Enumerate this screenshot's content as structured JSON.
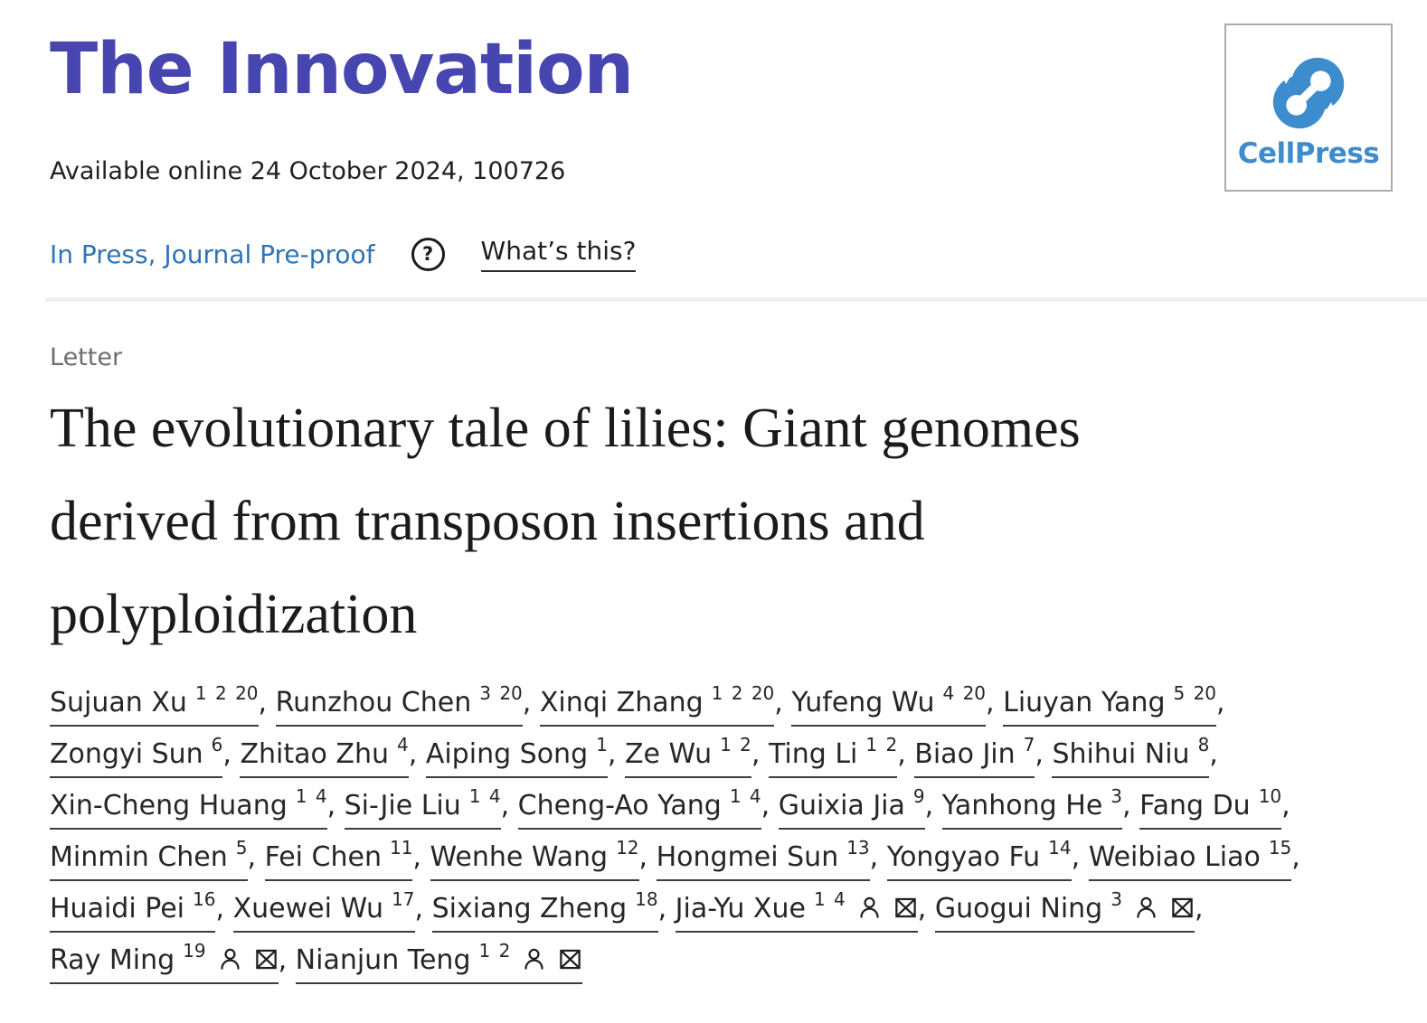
{
  "header": {
    "journal_logo_text": "The Innovation",
    "publisher": {
      "name": "CellPress"
    }
  },
  "meta": {
    "available_online": "Available online 24 October 2024, 100726",
    "status_link": "In Press, Journal Pre-proof",
    "help_icon_glyph": "?",
    "whats_this_link": "What’s this?"
  },
  "article": {
    "type_label": "Letter",
    "title": "The evolutionary tale of lilies: Giant genomes derived from transposon insertions and polyploidization"
  },
  "authors": {
    "lines": [
      [
        {
          "name": "Sujuan Xu",
          "sups": "1 2 20"
        },
        {
          "name": "Runzhou Chen",
          "sups": "3 20"
        },
        {
          "name": "Xinqi Zhang",
          "sups": "1 2 20"
        },
        {
          "name": "Yufeng Wu",
          "sups": "4 20"
        },
        {
          "name": "Liuyan Yang",
          "sups": "5 20"
        }
      ],
      [
        {
          "name": "Zongyi Sun",
          "sups": "6"
        },
        {
          "name": "Zhitao Zhu",
          "sups": "4"
        },
        {
          "name": "Aiping Song",
          "sups": "1"
        },
        {
          "name": "Ze Wu",
          "sups": "1 2"
        },
        {
          "name": "Ting Li",
          "sups": "1 2"
        },
        {
          "name": "Biao Jin",
          "sups": "7"
        },
        {
          "name": "Shihui Niu",
          "sups": "8"
        }
      ],
      [
        {
          "name": "Xin-Cheng Huang",
          "sups": "1 4"
        },
        {
          "name": "Si-Jie Liu",
          "sups": "1 4"
        },
        {
          "name": "Cheng-Ao Yang",
          "sups": "1 4"
        },
        {
          "name": "Guixia Jia",
          "sups": "9"
        },
        {
          "name": "Yanhong He",
          "sups": "3"
        },
        {
          "name": "Fang Du",
          "sups": "10"
        }
      ],
      [
        {
          "name": "Minmin Chen",
          "sups": "5"
        },
        {
          "name": "Fei Chen",
          "sups": "11"
        },
        {
          "name": "Wenhe Wang",
          "sups": "12"
        },
        {
          "name": "Hongmei Sun",
          "sups": "13"
        },
        {
          "name": "Yongyao Fu",
          "sups": "14"
        },
        {
          "name": "Weibiao Liao",
          "sups": "15"
        }
      ],
      [
        {
          "name": "Huaidi Pei",
          "sups": "16"
        },
        {
          "name": "Xuewei Wu",
          "sups": "17"
        },
        {
          "name": "Sixiang Zheng",
          "sups": "18"
        },
        {
          "name": "Jia-Yu Xue",
          "sups": "1 4",
          "corresponding": true
        },
        {
          "name": "Guogui Ning",
          "sups": "3",
          "corresponding": true
        }
      ],
      [
        {
          "name": "Ray Ming",
          "sups": "19",
          "corresponding": true
        },
        {
          "name": "Nianjun Teng",
          "sups": "1 2",
          "corresponding": true
        }
      ]
    ]
  },
  "colors": {
    "brand_purple": "#4746b0",
    "link_blue": "#2f74b5",
    "cellpress_blue": "#3d8ccd",
    "divider_gray": "#efefef",
    "underline_gray": "#3d3d3d"
  }
}
